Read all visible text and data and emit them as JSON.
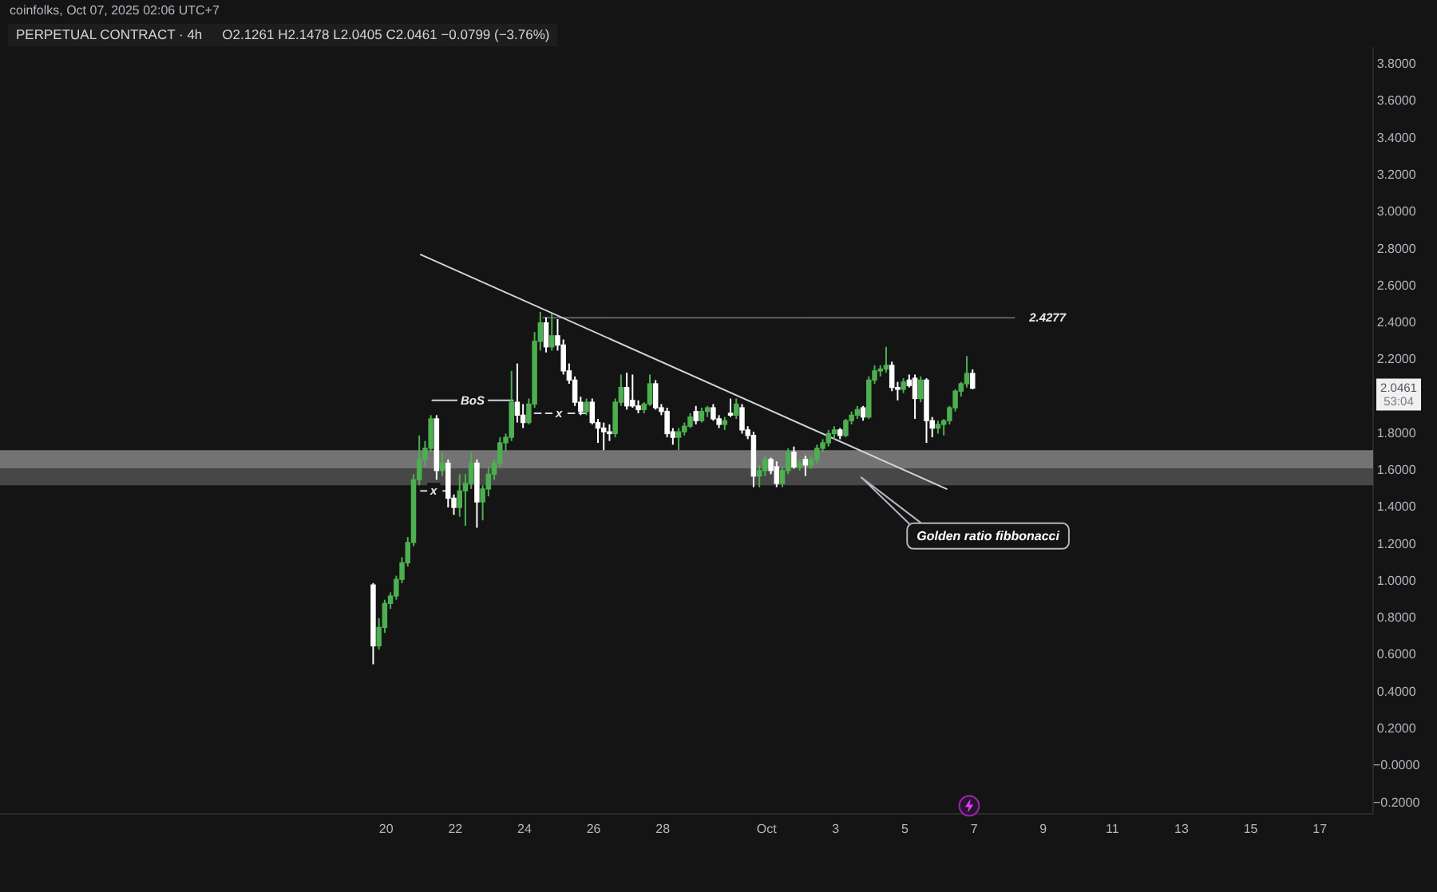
{
  "chart_data": {
    "type": "candlestick",
    "title": "PERPETUAL CONTRACT · 4h",
    "subtitle": "O2.1261 H2.1478 L2.0405 C2.0461 −0.0799 (−3.76%)",
    "x": [
      "2025-09-19T15:00",
      "2025-09-19T19:00",
      "2025-09-19T23:00",
      "2025-09-20T03:00",
      "2025-09-20T07:00",
      "2025-09-20T11:00",
      "2025-09-20T15:00",
      "2025-09-20T19:00",
      "2025-09-20T23:00",
      "2025-09-21T03:00",
      "2025-09-21T07:00",
      "2025-09-21T11:00",
      "2025-09-21T15:00",
      "2025-09-21T19:00",
      "2025-09-21T23:00",
      "2025-09-22T03:00",
      "2025-09-22T07:00",
      "2025-09-22T11:00",
      "2025-09-22T15:00",
      "2025-09-22T19:00",
      "2025-09-22T23:00",
      "2025-09-23T03:00",
      "2025-09-23T07:00",
      "2025-09-23T11:00",
      "2025-09-23T15:00",
      "2025-09-23T19:00",
      "2025-09-23T23:00",
      "2025-09-24T03:00",
      "2025-09-24T07:00",
      "2025-09-24T11:00",
      "2025-09-24T15:00",
      "2025-09-24T19:00",
      "2025-09-24T23:00",
      "2025-09-25T03:00",
      "2025-09-25T07:00",
      "2025-09-25T11:00",
      "2025-09-25T15:00",
      "2025-09-25T19:00",
      "2025-09-25T23:00",
      "2025-09-26T03:00",
      "2025-09-26T07:00",
      "2025-09-26T11:00",
      "2025-09-26T15:00",
      "2025-09-26T19:00",
      "2025-09-26T23:00",
      "2025-09-27T03:00",
      "2025-09-27T07:00",
      "2025-09-27T11:00",
      "2025-09-27T15:00",
      "2025-09-27T19:00",
      "2025-09-27T23:00",
      "2025-09-28T03:00",
      "2025-09-28T07:00",
      "2025-09-28T11:00",
      "2025-09-28T15:00",
      "2025-09-28T19:00",
      "2025-09-28T23:00",
      "2025-09-29T03:00",
      "2025-09-29T07:00",
      "2025-09-29T11:00",
      "2025-09-29T15:00",
      "2025-09-29T19:00",
      "2025-09-29T23:00",
      "2025-09-30T03:00",
      "2025-09-30T07:00",
      "2025-09-30T11:00",
      "2025-09-30T15:00",
      "2025-09-30T19:00",
      "2025-09-30T23:00",
      "2025-10-01T03:00",
      "2025-10-01T07:00",
      "2025-10-01T11:00",
      "2025-10-01T15:00",
      "2025-10-01T19:00",
      "2025-10-01T23:00",
      "2025-10-02T03:00",
      "2025-10-02T07:00",
      "2025-10-02T11:00",
      "2025-10-02T15:00",
      "2025-10-02T19:00",
      "2025-10-02T23:00",
      "2025-10-03T03:00",
      "2025-10-03T07:00",
      "2025-10-03T11:00",
      "2025-10-03T15:00",
      "2025-10-03T19:00",
      "2025-10-03T23:00",
      "2025-10-04T03:00",
      "2025-10-04T07:00",
      "2025-10-04T11:00",
      "2025-10-04T15:00",
      "2025-10-04T19:00",
      "2025-10-04T23:00",
      "2025-10-05T03:00",
      "2025-10-05T07:00",
      "2025-10-05T11:00",
      "2025-10-05T15:00",
      "2025-10-05T19:00",
      "2025-10-05T23:00",
      "2025-10-06T03:00",
      "2025-10-06T07:00",
      "2025-10-06T11:00",
      "2025-10-06T15:00",
      "2025-10-06T19:00",
      "2025-10-06T23:00"
    ],
    "ohlc": [
      [
        0.98,
        0.99,
        0.55,
        0.65
      ],
      [
        0.65,
        0.8,
        0.63,
        0.75
      ],
      [
        0.75,
        0.9,
        0.72,
        0.88
      ],
      [
        0.88,
        0.94,
        0.85,
        0.92
      ],
      [
        0.92,
        1.03,
        0.9,
        1.01
      ],
      [
        1.01,
        1.13,
        0.99,
        1.1
      ],
      [
        1.1,
        1.24,
        1.08,
        1.21
      ],
      [
        1.21,
        1.58,
        1.19,
        1.55
      ],
      [
        1.55,
        1.79,
        1.52,
        1.66
      ],
      [
        1.66,
        1.76,
        1.62,
        1.72
      ],
      [
        1.72,
        1.9,
        1.7,
        1.88
      ],
      [
        1.88,
        1.9,
        1.55,
        1.6
      ],
      [
        1.6,
        1.7,
        1.57,
        1.64
      ],
      [
        1.64,
        1.66,
        1.4,
        1.45
      ],
      [
        1.45,
        1.47,
        1.36,
        1.4
      ],
      [
        1.4,
        1.58,
        1.35,
        1.49
      ],
      [
        1.49,
        1.58,
        1.3,
        1.53
      ],
      [
        1.53,
        1.7,
        1.5,
        1.64
      ],
      [
        1.64,
        1.66,
        1.29,
        1.43
      ],
      [
        1.43,
        1.52,
        1.33,
        1.5
      ],
      [
        1.5,
        1.62,
        1.46,
        1.58
      ],
      [
        1.58,
        1.66,
        1.55,
        1.64
      ],
      [
        1.64,
        1.78,
        1.62,
        1.75
      ],
      [
        1.75,
        1.8,
        1.7,
        1.78
      ],
      [
        1.78,
        2.14,
        1.76,
        1.97
      ],
      [
        1.97,
        2.18,
        1.86,
        1.9
      ],
      [
        1.9,
        1.96,
        1.83,
        1.86
      ],
      [
        1.86,
        1.99,
        1.85,
        1.96
      ],
      [
        1.96,
        2.35,
        1.94,
        2.3
      ],
      [
        2.3,
        2.46,
        2.25,
        2.4
      ],
      [
        2.4,
        2.43,
        2.24,
        2.27
      ],
      [
        2.27,
        2.45,
        2.25,
        2.33
      ],
      [
        2.33,
        2.42,
        2.25,
        2.28
      ],
      [
        2.28,
        2.31,
        2.12,
        2.14
      ],
      [
        2.14,
        2.18,
        2.07,
        2.09
      ],
      [
        2.09,
        2.11,
        1.95,
        1.97
      ],
      [
        1.97,
        2.0,
        1.9,
        1.92
      ],
      [
        1.92,
        1.99,
        1.9,
        1.97
      ],
      [
        1.97,
        1.99,
        1.85,
        1.86
      ],
      [
        1.86,
        1.88,
        1.75,
        1.83
      ],
      [
        1.83,
        1.86,
        1.71,
        1.81
      ],
      [
        1.81,
        1.85,
        1.76,
        1.8
      ],
      [
        1.8,
        1.99,
        1.78,
        1.97
      ],
      [
        1.97,
        2.12,
        1.95,
        2.05
      ],
      [
        2.05,
        2.13,
        1.93,
        1.95
      ],
      [
        1.98,
        2.12,
        1.94,
        1.95
      ],
      [
        1.95,
        1.98,
        1.91,
        1.93
      ],
      [
        1.93,
        1.97,
        1.91,
        1.96
      ],
      [
        1.96,
        2.12,
        1.95,
        2.07
      ],
      [
        2.07,
        2.09,
        1.93,
        1.94
      ],
      [
        1.94,
        1.96,
        1.9,
        1.92
      ],
      [
        1.92,
        1.94,
        1.78,
        1.8
      ],
      [
        1.81,
        1.83,
        1.74,
        1.78
      ],
      [
        1.78,
        1.83,
        1.71,
        1.81
      ],
      [
        1.81,
        1.86,
        1.79,
        1.84
      ],
      [
        1.84,
        1.91,
        1.83,
        1.89
      ],
      [
        1.92,
        1.95,
        1.85,
        1.87
      ],
      [
        1.87,
        1.94,
        1.86,
        1.92
      ],
      [
        1.92,
        1.95,
        1.89,
        1.94
      ],
      [
        1.94,
        1.96,
        1.87,
        1.88
      ],
      [
        1.88,
        1.9,
        1.83,
        1.85
      ],
      [
        1.85,
        1.89,
        1.82,
        1.87
      ],
      [
        1.91,
        1.99,
        1.89,
        1.9
      ],
      [
        1.9,
        1.99,
        1.88,
        1.96
      ],
      [
        1.94,
        1.96,
        1.8,
        1.82
      ],
      [
        1.82,
        1.84,
        1.77,
        1.79
      ],
      [
        1.79,
        1.81,
        1.51,
        1.57
      ],
      [
        1.57,
        1.63,
        1.51,
        1.6
      ],
      [
        1.6,
        1.68,
        1.57,
        1.66
      ],
      [
        1.66,
        1.67,
        1.58,
        1.6
      ],
      [
        1.62,
        1.65,
        1.51,
        1.53
      ],
      [
        1.53,
        1.62,
        1.51,
        1.6
      ],
      [
        1.6,
        1.72,
        1.58,
        1.7
      ],
      [
        1.7,
        1.73,
        1.61,
        1.62
      ],
      [
        1.62,
        1.66,
        1.6,
        1.64
      ],
      [
        1.66,
        1.68,
        1.57,
        1.63
      ],
      [
        1.63,
        1.68,
        1.61,
        1.66
      ],
      [
        1.66,
        1.74,
        1.64,
        1.72
      ],
      [
        1.72,
        1.77,
        1.7,
        1.75
      ],
      [
        1.75,
        1.82,
        1.73,
        1.8
      ],
      [
        1.8,
        1.84,
        1.77,
        1.82
      ],
      [
        1.82,
        1.83,
        1.77,
        1.79
      ],
      [
        1.79,
        1.88,
        1.78,
        1.87
      ],
      [
        1.87,
        1.92,
        1.85,
        1.9
      ],
      [
        1.9,
        1.95,
        1.88,
        1.93
      ],
      [
        1.94,
        1.95,
        1.87,
        1.89
      ],
      [
        1.89,
        2.11,
        1.88,
        2.09
      ],
      [
        2.09,
        2.17,
        2.07,
        2.14
      ],
      [
        2.14,
        2.17,
        2.11,
        2.15
      ],
      [
        2.15,
        2.27,
        2.13,
        2.17
      ],
      [
        2.17,
        2.19,
        2.03,
        2.05
      ],
      [
        2.05,
        2.08,
        1.98,
        2.04
      ],
      [
        2.04,
        2.1,
        2.02,
        2.08
      ],
      [
        2.09,
        2.12,
        2.05,
        2.06
      ],
      [
        2.1,
        2.12,
        1.88,
        1.99
      ],
      [
        1.99,
        2.11,
        1.97,
        2.09
      ],
      [
        2.09,
        2.1,
        1.75,
        1.87
      ],
      [
        1.87,
        1.89,
        1.78,
        1.83
      ],
      [
        1.83,
        1.87,
        1.8,
        1.85
      ],
      [
        1.85,
        1.88,
        1.79,
        1.87
      ],
      [
        1.87,
        1.95,
        1.85,
        1.94
      ],
      [
        1.94,
        2.04,
        1.92,
        2.03
      ],
      [
        2.03,
        2.08,
        2.0,
        2.07
      ],
      [
        2.07,
        2.22,
        2.05,
        2.1261
      ],
      [
        2.1261,
        2.1478,
        2.0405,
        2.0461
      ]
    ],
    "colors": [
      "#ffffff",
      "#4caf50",
      "#4caf50",
      "#4caf50",
      "#4caf50",
      "#4caf50",
      "#4caf50",
      "#4caf50",
      "#4caf50",
      "#4caf50",
      "#4caf50",
      "#ffffff",
      "#4caf50",
      "#ffffff",
      "#ffffff",
      "#4caf50",
      "#4caf50",
      "#4caf50",
      "#ffffff",
      "#4caf50",
      "#4caf50",
      "#4caf50",
      "#4caf50",
      "#4caf50",
      "#4caf50",
      "#ffffff",
      "#ffffff",
      "#4caf50",
      "#4caf50",
      "#4caf50",
      "#ffffff",
      "#4caf50",
      "#ffffff",
      "#ffffff",
      "#ffffff",
      "#ffffff",
      "#ffffff",
      "#4caf50",
      "#ffffff",
      "#ffffff",
      "#ffffff",
      "#ffffff",
      "#4caf50",
      "#4caf50",
      "#ffffff",
      "#ffffff",
      "#ffffff",
      "#4caf50",
      "#4caf50",
      "#ffffff",
      "#ffffff",
      "#ffffff",
      "#ffffff",
      "#4caf50",
      "#4caf50",
      "#4caf50",
      "#ffffff",
      "#4caf50",
      "#4caf50",
      "#ffffff",
      "#ffffff",
      "#4caf50",
      "#ffffff",
      "#4caf50",
      "#ffffff",
      "#ffffff",
      "#ffffff",
      "#4caf50",
      "#4caf50",
      "#ffffff",
      "#ffffff",
      "#4caf50",
      "#4caf50",
      "#ffffff",
      "#4caf50",
      "#ffffff",
      "#4caf50",
      "#4caf50",
      "#4caf50",
      "#4caf50",
      "#4caf50",
      "#ffffff",
      "#4caf50",
      "#4caf50",
      "#4caf50",
      "#ffffff",
      "#4caf50",
      "#4caf50",
      "#4caf50",
      "#4caf50",
      "#ffffff",
      "#ffffff",
      "#4caf50",
      "#ffffff",
      "#ffffff",
      "#4caf50",
      "#ffffff",
      "#ffffff",
      "#4caf50",
      "#4caf50",
      "#4caf50",
      "#4caf50",
      "#4caf50",
      "#4caf50",
      "#ffffff"
    ],
    "series": [
      {
        "type": "line",
        "x": [
          "2025-09-21T00:00",
          "2025-10-06T05:00"
        ],
        "values": [
          2.77,
          1.5
        ],
        "color": "#d1d4dc"
      },
      {
        "type": "line",
        "x": [
          "2025-09-24T13:00",
          "2025-10-08T04:00"
        ],
        "values": [
          2.4277,
          2.4277
        ],
        "color": "#5d606b"
      },
      {
        "type": "line",
        "x": [
          "2025-09-21T08:00",
          "2025-09-23T16:00"
        ],
        "values": [
          1.98,
          1.98
        ],
        "color": "#d1d4dc"
      },
      {
        "type": "line",
        "x": [
          "2025-09-21T00:00",
          "2025-09-21T19:00"
        ],
        "values": [
          1.49,
          1.49
        ],
        "color": "#d1d4dc",
        "line_style": "dashed"
      },
      {
        "type": "line",
        "x": [
          "2025-09-24T07:00",
          "2025-09-25T19:00"
        ],
        "values": [
          1.91,
          1.91
        ],
        "color": "#d1d4dc",
        "line_style": "dashed"
      }
    ],
    "bands": [
      {
        "axis": "y",
        "from": 1.61,
        "to": 1.71,
        "color": "#737373"
      },
      {
        "axis": "y",
        "from": 1.52,
        "to": 1.61,
        "color": "#474747"
      }
    ],
    "annotations": [
      "coinfolks, Oct 07, 2025 02:06 UTC+7",
      "2.0461",
      "53:04",
      "Golden ratio fibbonacci",
      {
        "text": "2.4277",
        "x": "2025-10-09T03:00",
        "y": 2.4277
      },
      {
        "text": "BoS",
        "x": "2025-09-22T12:00",
        "y": 1.98
      },
      {
        "text": "x",
        "x": "2025-09-21T09:00",
        "y": 1.49
      },
      {
        "text": "x",
        "x": "2025-09-25T00:00",
        "y": 1.91
      }
    ],
    "xlim": [
      "2025-09-08T20:00",
      "2025-10-18T13:00"
    ],
    "xticks": [
      {
        "value": "2025-09-20",
        "label": "20"
      },
      {
        "value": "2025-09-22",
        "label": "22"
      },
      {
        "value": "2025-09-24",
        "label": "24"
      },
      {
        "value": "2025-09-26",
        "label": "26"
      },
      {
        "value": "2025-09-28",
        "label": "28"
      },
      {
        "value": "2025-10-01",
        "label": "Oct"
      },
      {
        "value": "2025-10-03",
        "label": "3"
      },
      {
        "value": "2025-10-05",
        "label": "5"
      },
      {
        "value": "2025-10-07",
        "label": "7"
      },
      {
        "value": "2025-10-09",
        "label": "9"
      },
      {
        "value": "2025-10-11",
        "label": "11"
      },
      {
        "value": "2025-10-13",
        "label": "13"
      },
      {
        "value": "2025-10-15",
        "label": "15"
      },
      {
        "value": "2025-10-17",
        "label": "17"
      }
    ],
    "ylim": [
      -0.26,
      3.89
    ],
    "yticks": [
      {
        "value": 3.8,
        "label": "3.8000"
      },
      {
        "value": 3.6,
        "label": "3.6000"
      },
      {
        "value": 3.4,
        "label": "3.4000"
      },
      {
        "value": 3.2,
        "label": "3.2000"
      },
      {
        "value": 3.0,
        "label": "3.0000"
      },
      {
        "value": 2.8,
        "label": "2.8000"
      },
      {
        "value": 2.6,
        "label": "2.6000"
      },
      {
        "value": 2.4,
        "label": "2.4000"
      },
      {
        "value": 2.2,
        "label": "2.2000"
      },
      {
        "value": 1.8,
        "label": "1.8000"
      },
      {
        "value": 1.6,
        "label": "1.6000"
      },
      {
        "value": 1.4,
        "label": "1.4000"
      },
      {
        "value": 1.2,
        "label": "1.2000"
      },
      {
        "value": 1.0,
        "label": "1.0000"
      },
      {
        "value": 0.8,
        "label": "0.8000"
      },
      {
        "value": 0.6,
        "label": "0.6000"
      },
      {
        "value": 0.4,
        "label": "0.4000"
      },
      {
        "value": 0.2,
        "label": "0.2000"
      },
      {
        "value": 0,
        "label": "−0.0000"
      },
      {
        "value": -0.2,
        "label": "−0.2000"
      }
    ]
  }
}
